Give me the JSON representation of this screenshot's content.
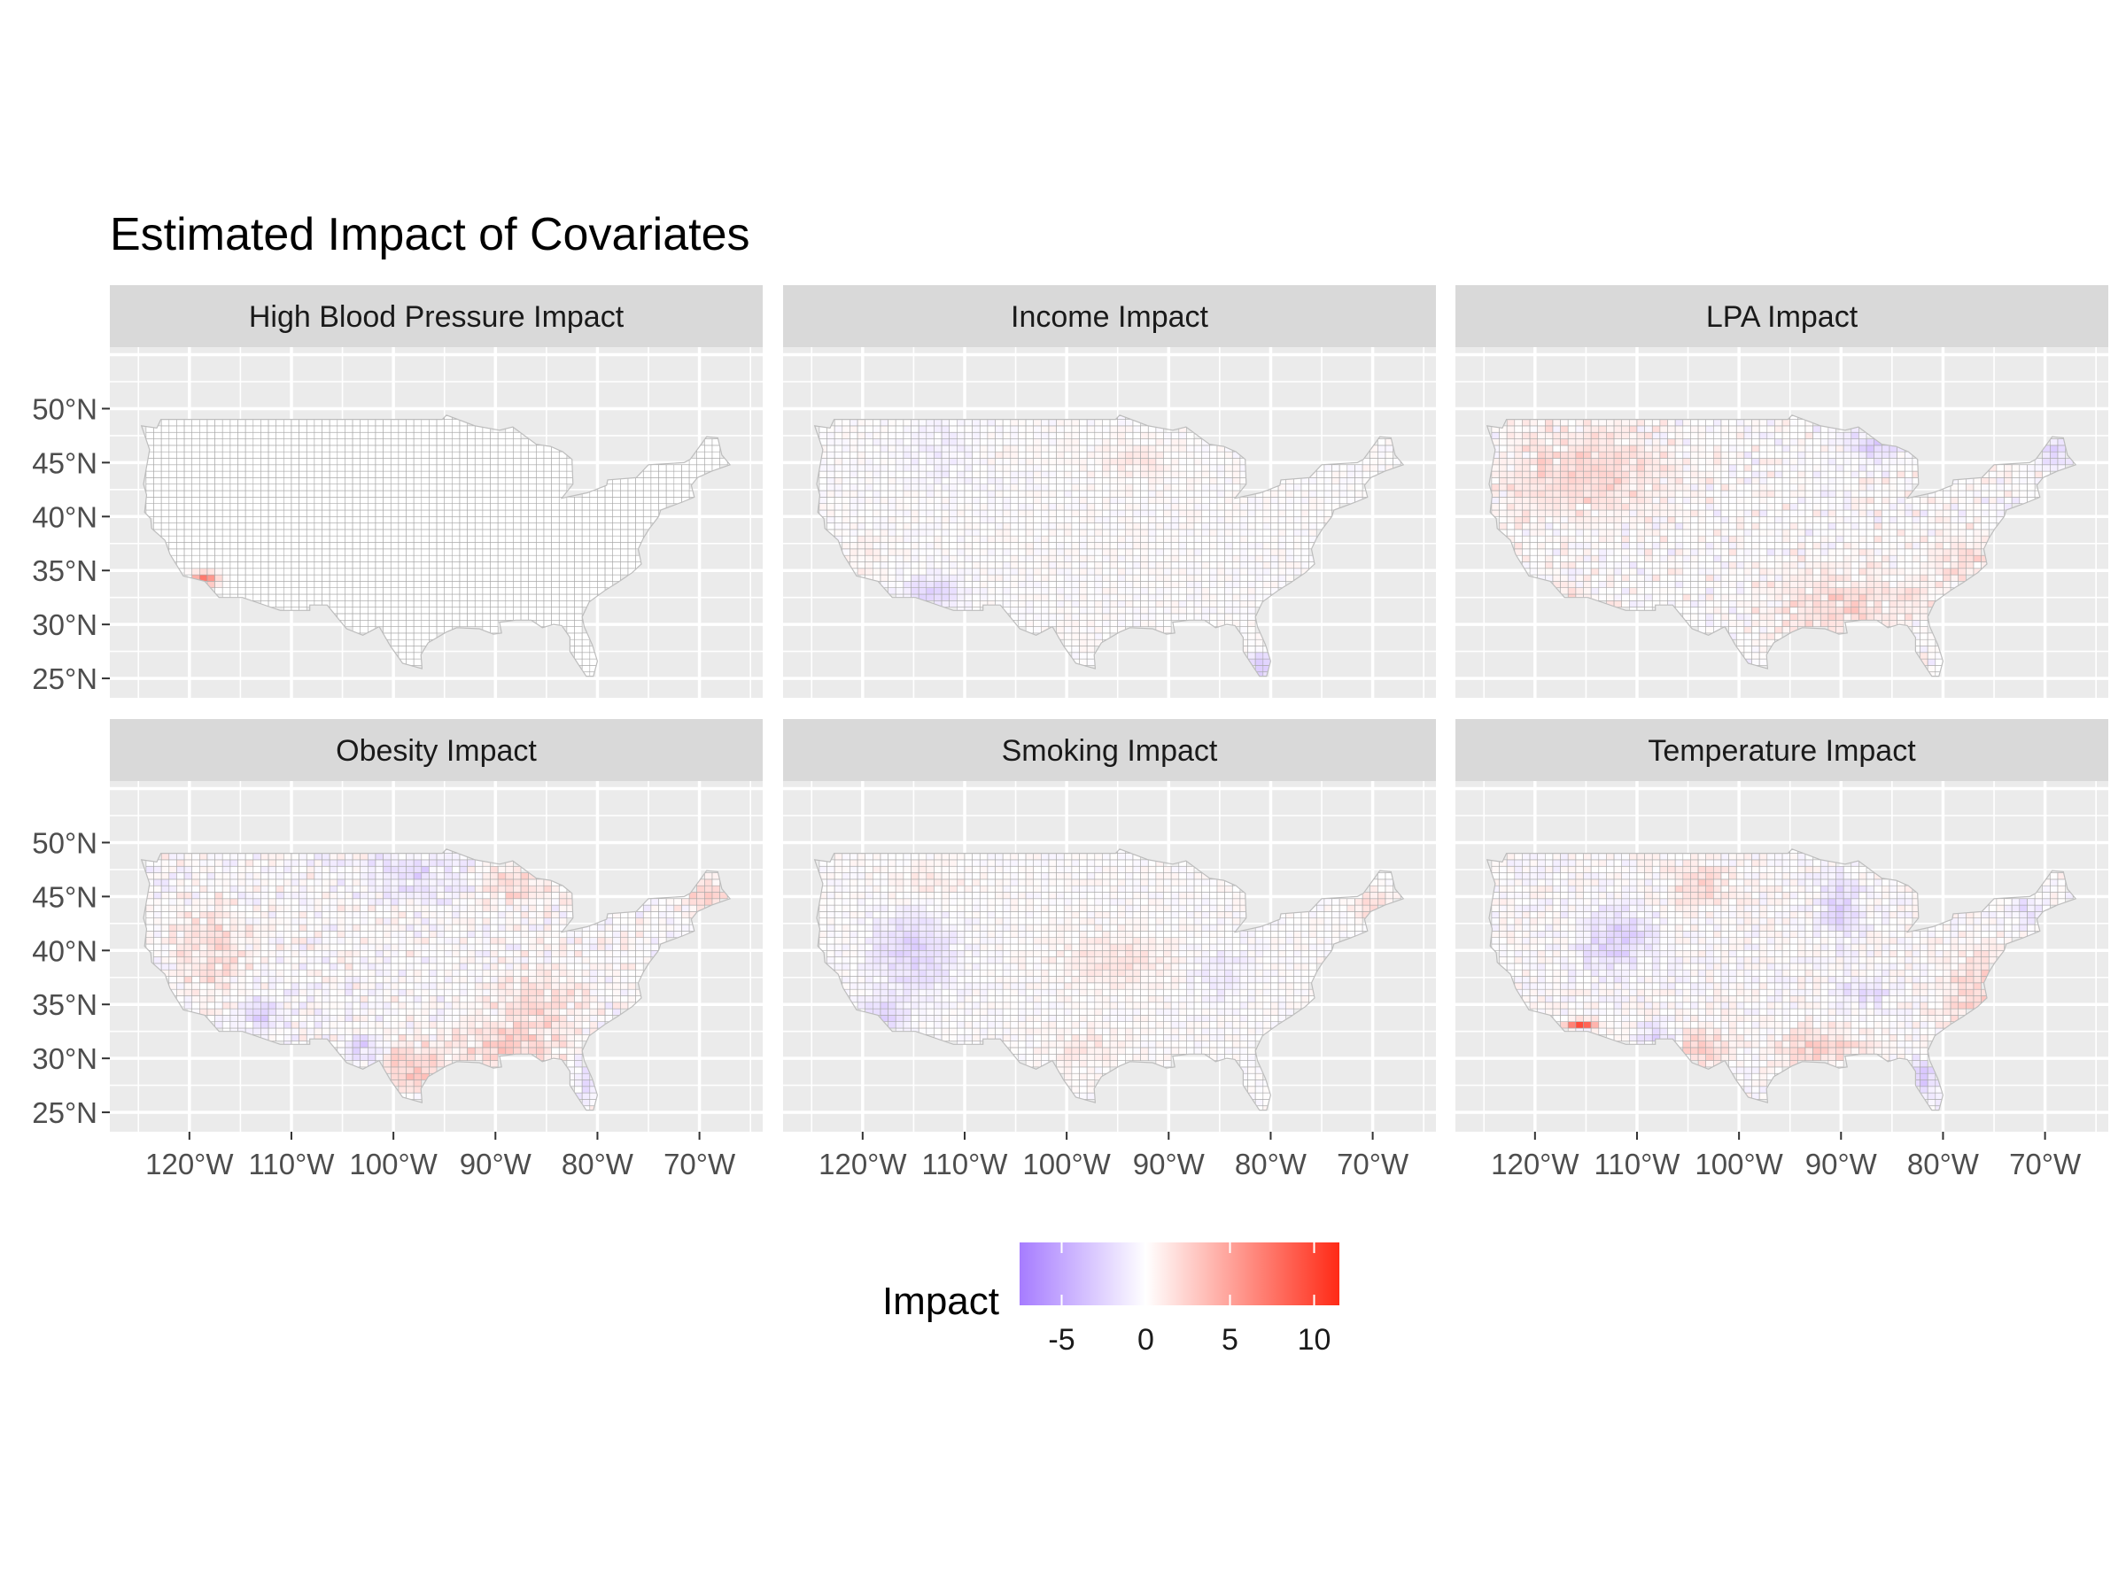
{
  "title": "Estimated Impact of Covariates",
  "panels": [
    {
      "title": "High Blood Pressure Impact",
      "pattern": "hbp"
    },
    {
      "title": "Income Impact",
      "pattern": "income"
    },
    {
      "title": "LPA Impact",
      "pattern": "lpa"
    },
    {
      "title": "Obesity Impact",
      "pattern": "obesity"
    },
    {
      "title": "Smoking Impact",
      "pattern": "smoking"
    },
    {
      "title": "Temperature Impact",
      "pattern": "temperature"
    }
  ],
  "axes": {
    "x_ticks": [
      {
        "label": "120°W",
        "value": -120
      },
      {
        "label": "110°W",
        "value": -110
      },
      {
        "label": "100°W",
        "value": -100
      },
      {
        "label": "90°W",
        "value": -90
      },
      {
        "label": "80°W",
        "value": -80
      },
      {
        "label": "70°W",
        "value": -70
      }
    ],
    "y_ticks": [
      {
        "label": "50°N",
        "value": 50
      },
      {
        "label": "45°N",
        "value": 45
      },
      {
        "label": "40°N",
        "value": 40
      },
      {
        "label": "35°N",
        "value": 35
      },
      {
        "label": "30°N",
        "value": 30
      },
      {
        "label": "25°N",
        "value": 25
      }
    ],
    "lon_range": [
      -127.8,
      -63.8
    ],
    "lat_range": [
      23.2,
      55.7
    ]
  },
  "legend": {
    "title": "Impact",
    "ticks": [
      {
        "label": "-5",
        "value": -5
      },
      {
        "label": "0",
        "value": 0
      },
      {
        "label": "5",
        "value": 5
      },
      {
        "label": "10",
        "value": 10
      }
    ],
    "range": [
      -7.5,
      11.5
    ],
    "low_color": "#a67cff",
    "mid_color": "#ffffff",
    "high_color": "#ff2a16"
  },
  "colors": {
    "panel_bg": "#ebebeb",
    "grid": "#ffffff",
    "strip_bg": "#d9d9d9",
    "county_border": "#a8a8a8"
  }
}
